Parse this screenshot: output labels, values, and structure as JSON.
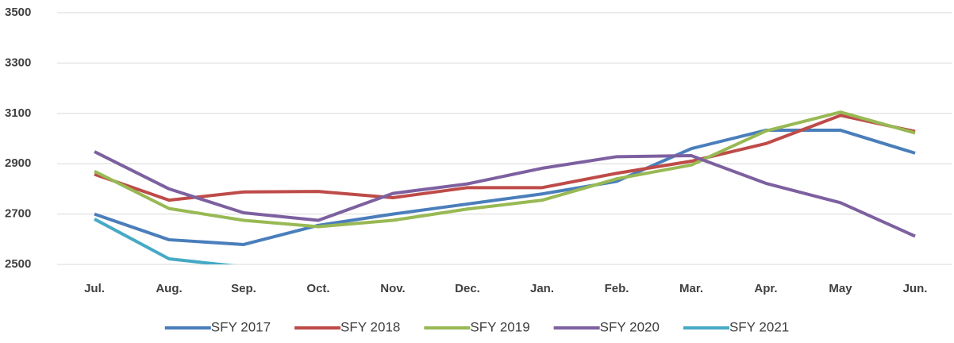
{
  "chart_data": {
    "type": "line",
    "categories": [
      "Jul.",
      "Aug.",
      "Sep.",
      "Oct.",
      "Nov.",
      "Dec.",
      "Jan.",
      "Feb.",
      "Mar.",
      "Apr.",
      "May",
      "Jun."
    ],
    "series": [
      {
        "name": "SFY 2017",
        "color": "#4a7ebb",
        "values": [
          2700,
          2598,
          2579,
          2655,
          2700,
          2740,
          2780,
          2830,
          2960,
          3033,
          3033,
          2942
        ]
      },
      {
        "name": "SFY 2018",
        "color": "#be4b48",
        "values": [
          2858,
          2755,
          2788,
          2790,
          2765,
          2805,
          2805,
          2862,
          2910,
          2980,
          3092,
          3028
        ]
      },
      {
        "name": "SFY 2019",
        "color": "#98b954",
        "values": [
          2870,
          2722,
          2675,
          2650,
          2675,
          2720,
          2755,
          2840,
          2895,
          3030,
          3105,
          3022
        ]
      },
      {
        "name": "SFY 2020",
        "color": "#7d60a0",
        "values": [
          2948,
          2800,
          2705,
          2675,
          2782,
          2820,
          2882,
          2928,
          2932,
          2822,
          2745,
          2612
        ]
      },
      {
        "name": "SFY 2021",
        "color": "#46aac5",
        "values": [
          2680,
          2522,
          2490,
          null,
          null,
          null,
          null,
          null,
          null,
          null,
          null,
          null
        ]
      }
    ],
    "ylim": [
      2500,
      3500
    ],
    "yticks": [
      2500,
      2700,
      2900,
      3100,
      3300,
      3500
    ],
    "grid": true,
    "legend": "bottom"
  }
}
